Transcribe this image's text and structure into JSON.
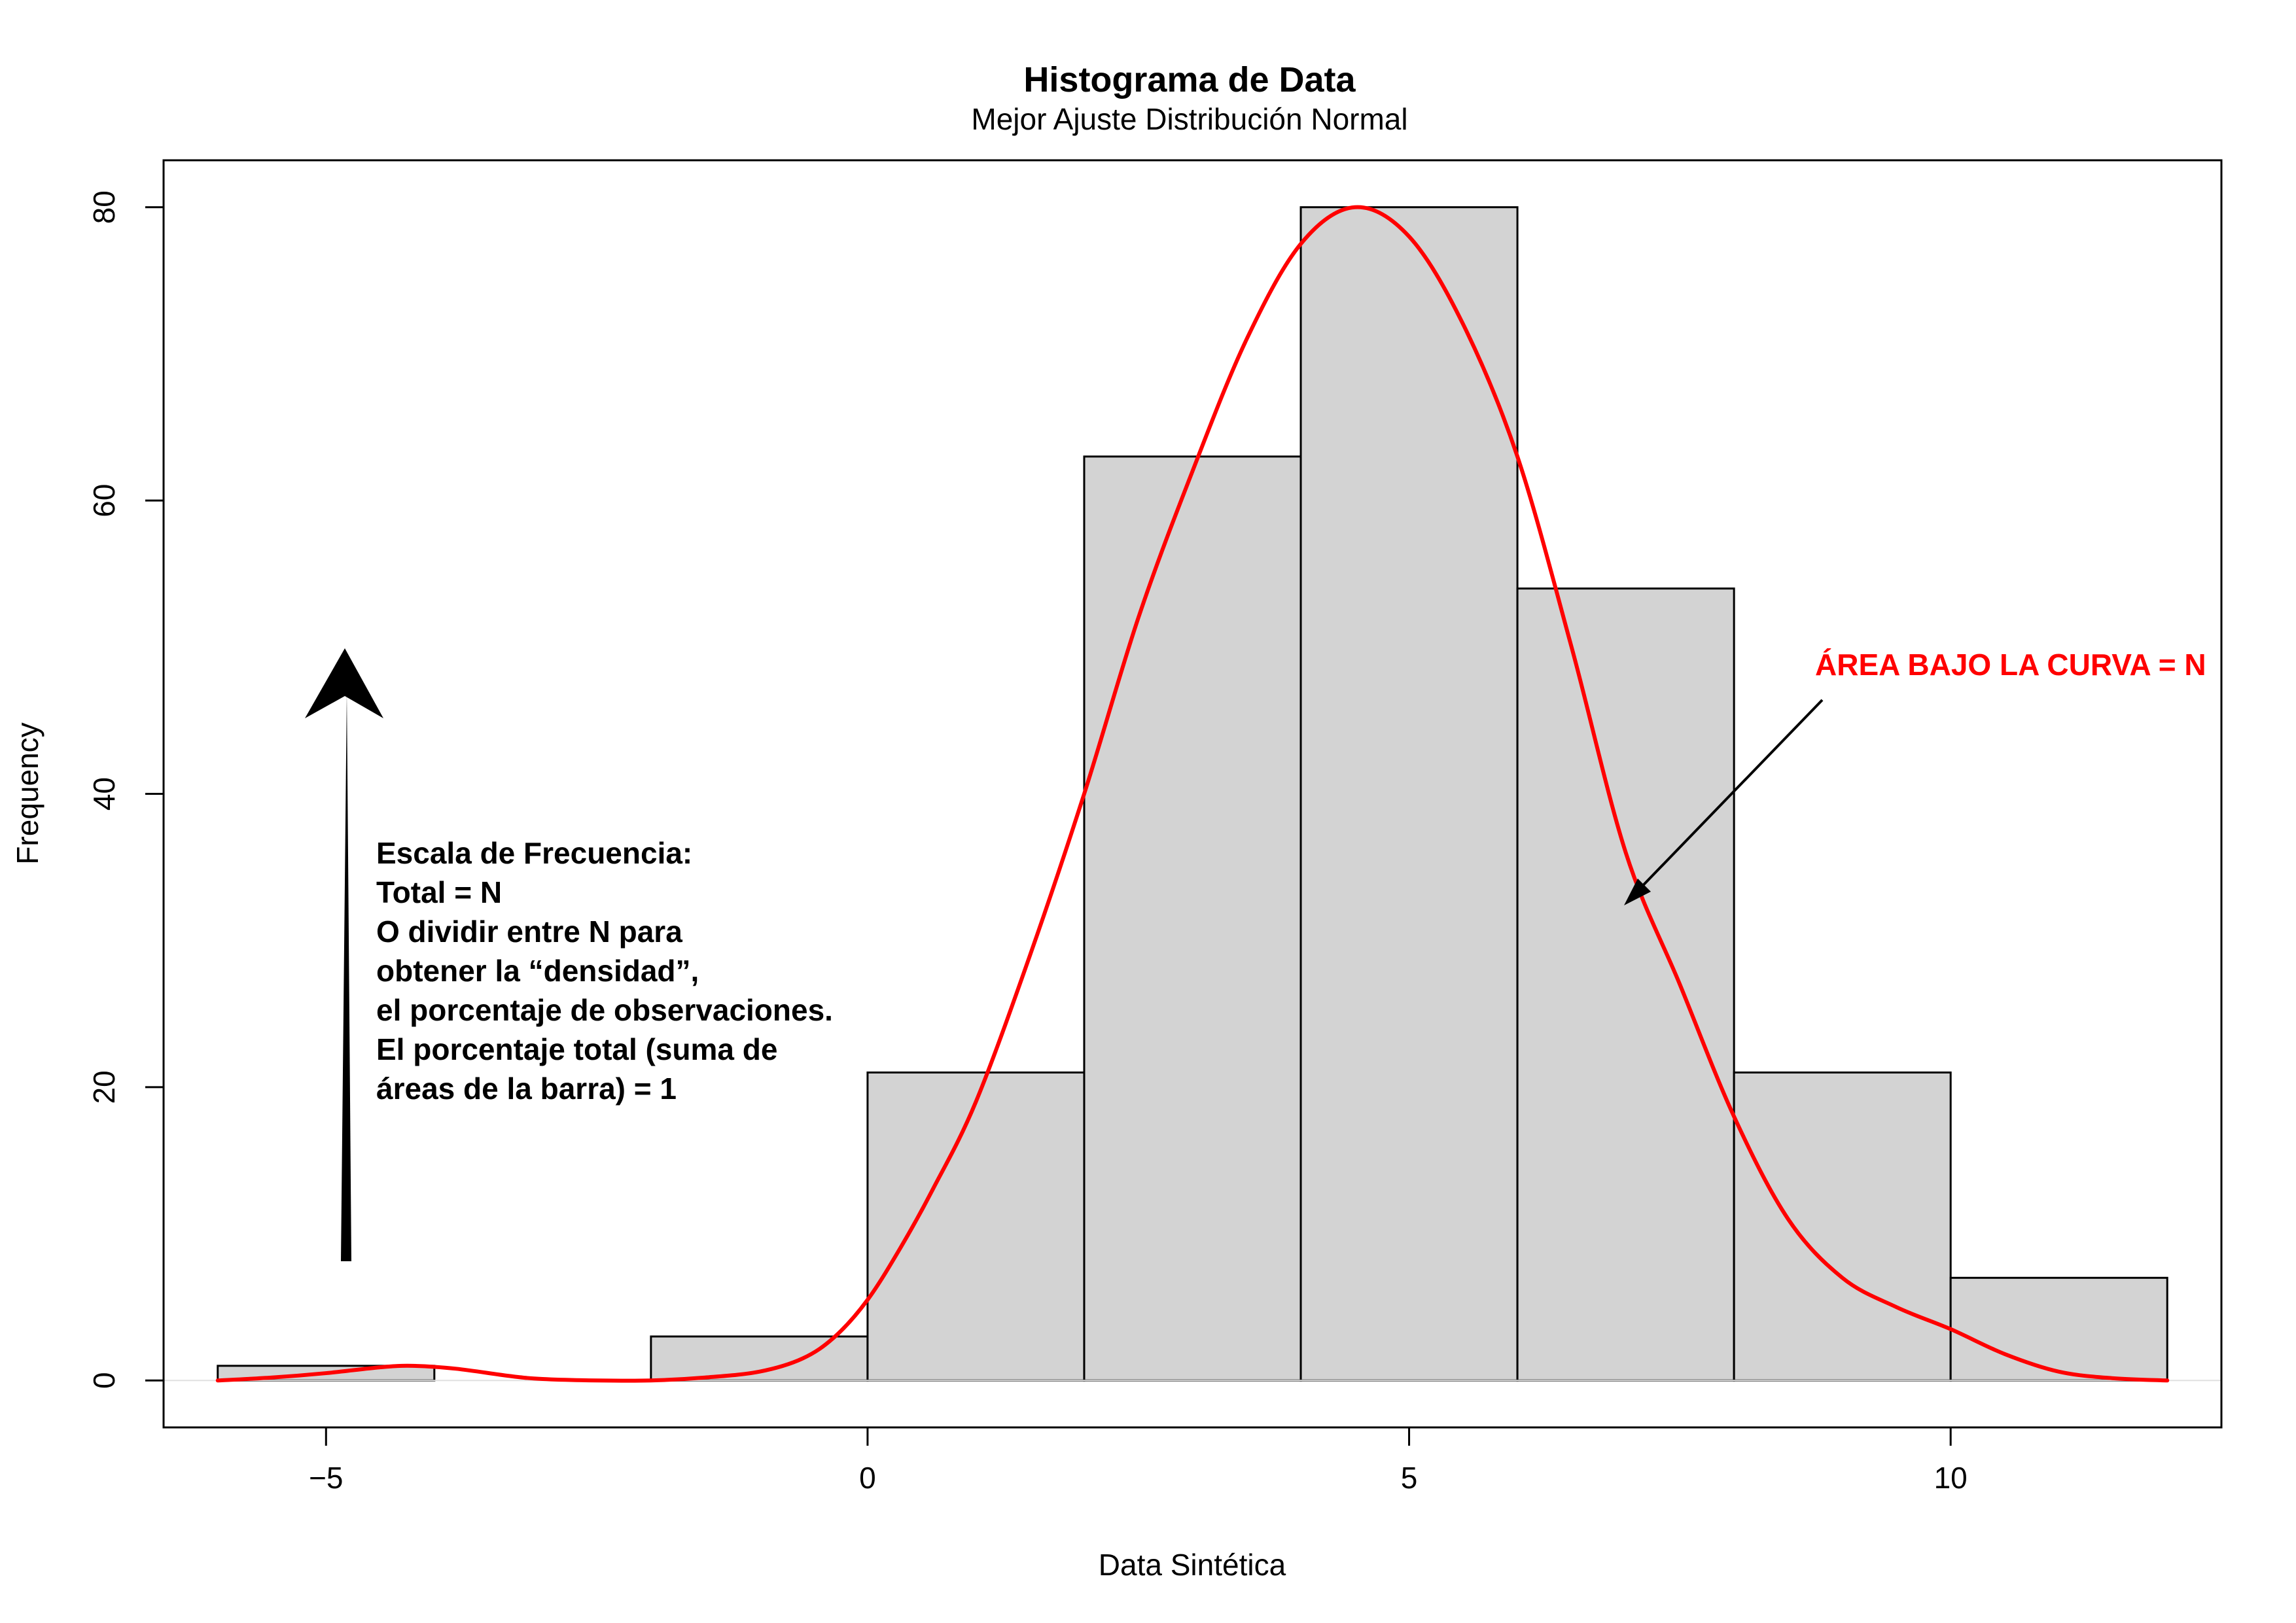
{
  "chart_data": {
    "type": "bar",
    "title": "Histograma de Data",
    "subtitle": "Mejor Ajuste Distribución Normal",
    "xlabel": "Data Sintética",
    "ylabel": "Frequency",
    "bins": [
      {
        "from": -6,
        "to": -4,
        "count": 1
      },
      {
        "from": -4,
        "to": -2,
        "count": 0
      },
      {
        "from": -2,
        "to": 0,
        "count": 3
      },
      {
        "from": 0,
        "to": 2,
        "count": 21
      },
      {
        "from": 2,
        "to": 4,
        "count": 63
      },
      {
        "from": 4,
        "to": 6,
        "count": 80
      },
      {
        "from": 6,
        "to": 8,
        "count": 54
      },
      {
        "from": 8,
        "to": 10,
        "count": 21
      },
      {
        "from": 10,
        "to": 12,
        "count": 7
      }
    ],
    "xlim": [
      -6.5,
      12.5
    ],
    "ylim": [
      -3.2,
      83.2
    ],
    "xticks": [
      -5,
      0,
      5,
      10
    ],
    "xtick_labels": [
      "−5",
      "0",
      "5",
      "10"
    ],
    "yticks": [
      0,
      20,
      40,
      60,
      80
    ],
    "curve": {
      "color": "#ff0000",
      "points": [
        [
          -6,
          0
        ],
        [
          -5.5,
          0.2
        ],
        [
          -5,
          0.5
        ],
        [
          -4.5,
          0.9
        ],
        [
          -4.2,
          1.0
        ],
        [
          -3.8,
          0.8
        ],
        [
          -3.3,
          0.3
        ],
        [
          -3,
          0.1
        ],
        [
          -2.5,
          0
        ],
        [
          -2,
          0
        ],
        [
          -1.5,
          0.2
        ],
        [
          -1,
          0.6
        ],
        [
          -0.6,
          1.5
        ],
        [
          -0.3,
          3
        ],
        [
          0,
          5.5
        ],
        [
          0.3,
          9
        ],
        [
          0.6,
          13
        ],
        [
          1,
          19
        ],
        [
          1.5,
          29
        ],
        [
          2,
          40
        ],
        [
          2.5,
          52
        ],
        [
          3,
          62
        ],
        [
          3.5,
          71
        ],
        [
          4,
          77.5
        ],
        [
          4.5,
          80
        ],
        [
          5,
          78
        ],
        [
          5.5,
          72
        ],
        [
          6,
          63
        ],
        [
          6.5,
          50
        ],
        [
          7,
          36
        ],
        [
          7.5,
          27
        ],
        [
          8,
          18
        ],
        [
          8.5,
          11
        ],
        [
          9,
          7
        ],
        [
          9.5,
          5
        ],
        [
          10,
          3.5
        ],
        [
          10.5,
          1.8
        ],
        [
          11,
          0.6
        ],
        [
          11.5,
          0.15
        ],
        [
          12,
          0
        ]
      ]
    },
    "annotations": {
      "left_lines": [
        "Escala de Frecuencia:",
        "Total = N",
        "O dividir entre N para",
        "obtener la “densidad”,",
        "el porcentaje de observaciones.",
        "El porcentaje total (suma de",
        "áreas de la barra) = 1"
      ],
      "right_text": "ÁREA BAJO LA CURVA = N"
    },
    "colors": {
      "bar_fill": "#d3d3d3",
      "bar_stroke": "#000000",
      "curve": "#ff0000",
      "annotation_red": "#ff0000"
    }
  }
}
